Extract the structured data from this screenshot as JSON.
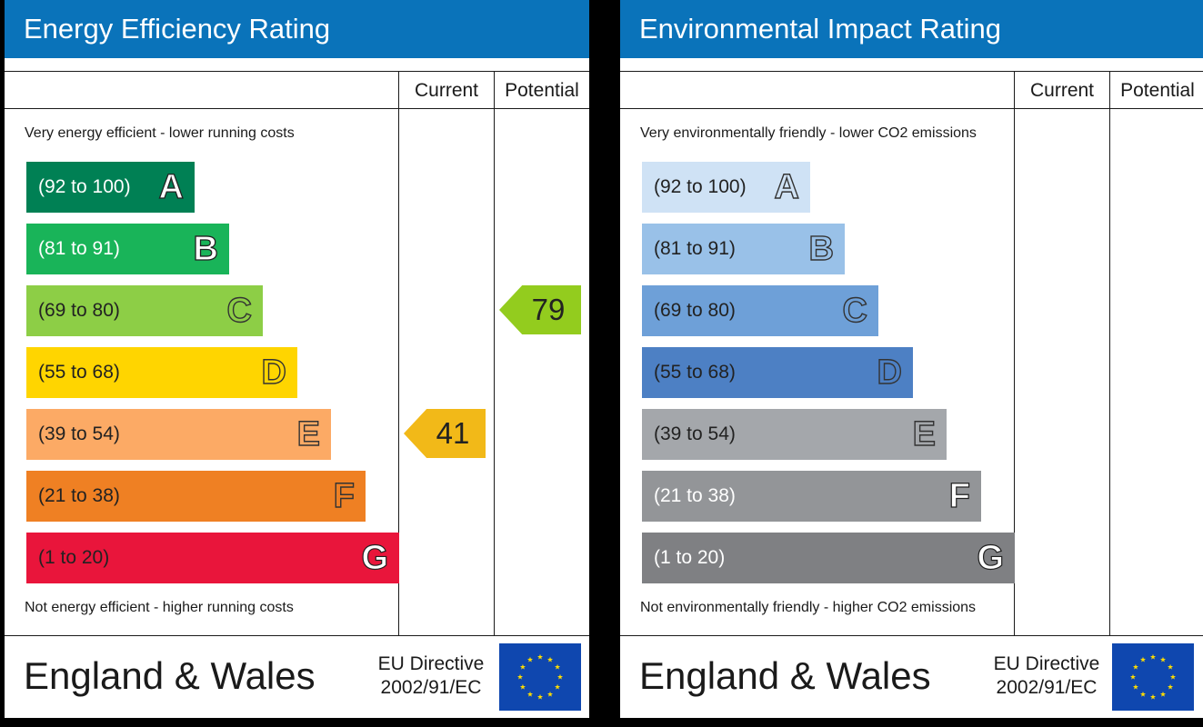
{
  "chart_data": [
    {
      "type": "bar",
      "title": "Energy Efficiency Rating",
      "column_headers": [
        "Current",
        "Potential"
      ],
      "top_caption": "Very energy efficient - lower running costs",
      "bottom_caption": "Not energy efficient - higher running costs",
      "categories": [
        "A",
        "B",
        "C",
        "D",
        "E",
        "F",
        "G"
      ],
      "bands": [
        {
          "letter": "A",
          "range": "(92 to 100)",
          "min": 92,
          "max": 100,
          "color": "#008054",
          "text_color": "#ffffff"
        },
        {
          "letter": "B",
          "range": "(81 to 91)",
          "min": 81,
          "max": 91,
          "color": "#19b459",
          "text_color": "#ffffff"
        },
        {
          "letter": "C",
          "range": "(69 to 80)",
          "min": 69,
          "max": 80,
          "color": "#8dce46",
          "text_color": "#222222"
        },
        {
          "letter": "D",
          "range": "(55 to 68)",
          "min": 55,
          "max": 68,
          "color": "#ffd500",
          "text_color": "#222222"
        },
        {
          "letter": "E",
          "range": "(39 to 54)",
          "min": 39,
          "max": 54,
          "color": "#fcaa65",
          "text_color": "#222222"
        },
        {
          "letter": "F",
          "range": "(21 to 38)",
          "min": 21,
          "max": 38,
          "color": "#ef8023",
          "text_color": "#222222"
        },
        {
          "letter": "G",
          "range": "(1 to 20)",
          "min": 1,
          "max": 20,
          "color": "#e9153b",
          "text_color": "#222222"
        }
      ],
      "current": {
        "value": 41,
        "band": "E",
        "color": "#f2b918"
      },
      "potential": {
        "value": 79,
        "band": "C",
        "color": "#93cc1e"
      },
      "footer": {
        "country": "England & Wales",
        "directive_line1": "EU Directive",
        "directive_line2": "2002/91/EC"
      }
    },
    {
      "type": "bar",
      "title": "Environmental Impact Rating",
      "column_headers": [
        "Current",
        "Potential"
      ],
      "top_caption": "Very environmentally friendly - lower CO2 emissions",
      "bottom_caption": "Not environmentally friendly - higher CO2 emissions",
      "categories": [
        "A",
        "B",
        "C",
        "D",
        "E",
        "F",
        "G"
      ],
      "bands": [
        {
          "letter": "A",
          "range": "(92 to 100)",
          "min": 92,
          "max": 100,
          "color": "#cfe2f5",
          "text_color": "#222222"
        },
        {
          "letter": "B",
          "range": "(81 to 91)",
          "min": 81,
          "max": 91,
          "color": "#99c1e8",
          "text_color": "#222222"
        },
        {
          "letter": "C",
          "range": "(69 to 80)",
          "min": 69,
          "max": 80,
          "color": "#6ea0d8",
          "text_color": "#222222"
        },
        {
          "letter": "D",
          "range": "(55 to 68)",
          "min": 55,
          "max": 68,
          "color": "#4d80c4",
          "text_color": "#222222"
        },
        {
          "letter": "E",
          "range": "(39 to 54)",
          "min": 39,
          "max": 54,
          "color": "#a4a7ab",
          "text_color": "#222222"
        },
        {
          "letter": "F",
          "range": "(21 to 38)",
          "min": 21,
          "max": 38,
          "color": "#939598",
          "text_color": "#ffffff"
        },
        {
          "letter": "G",
          "range": "(1 to 20)",
          "min": 1,
          "max": 20,
          "color": "#7f8083",
          "text_color": "#ffffff"
        }
      ],
      "footer": {
        "country": "England & Wales",
        "directive_line1": "EU Directive",
        "directive_line2": "2002/91/EC"
      }
    }
  ]
}
